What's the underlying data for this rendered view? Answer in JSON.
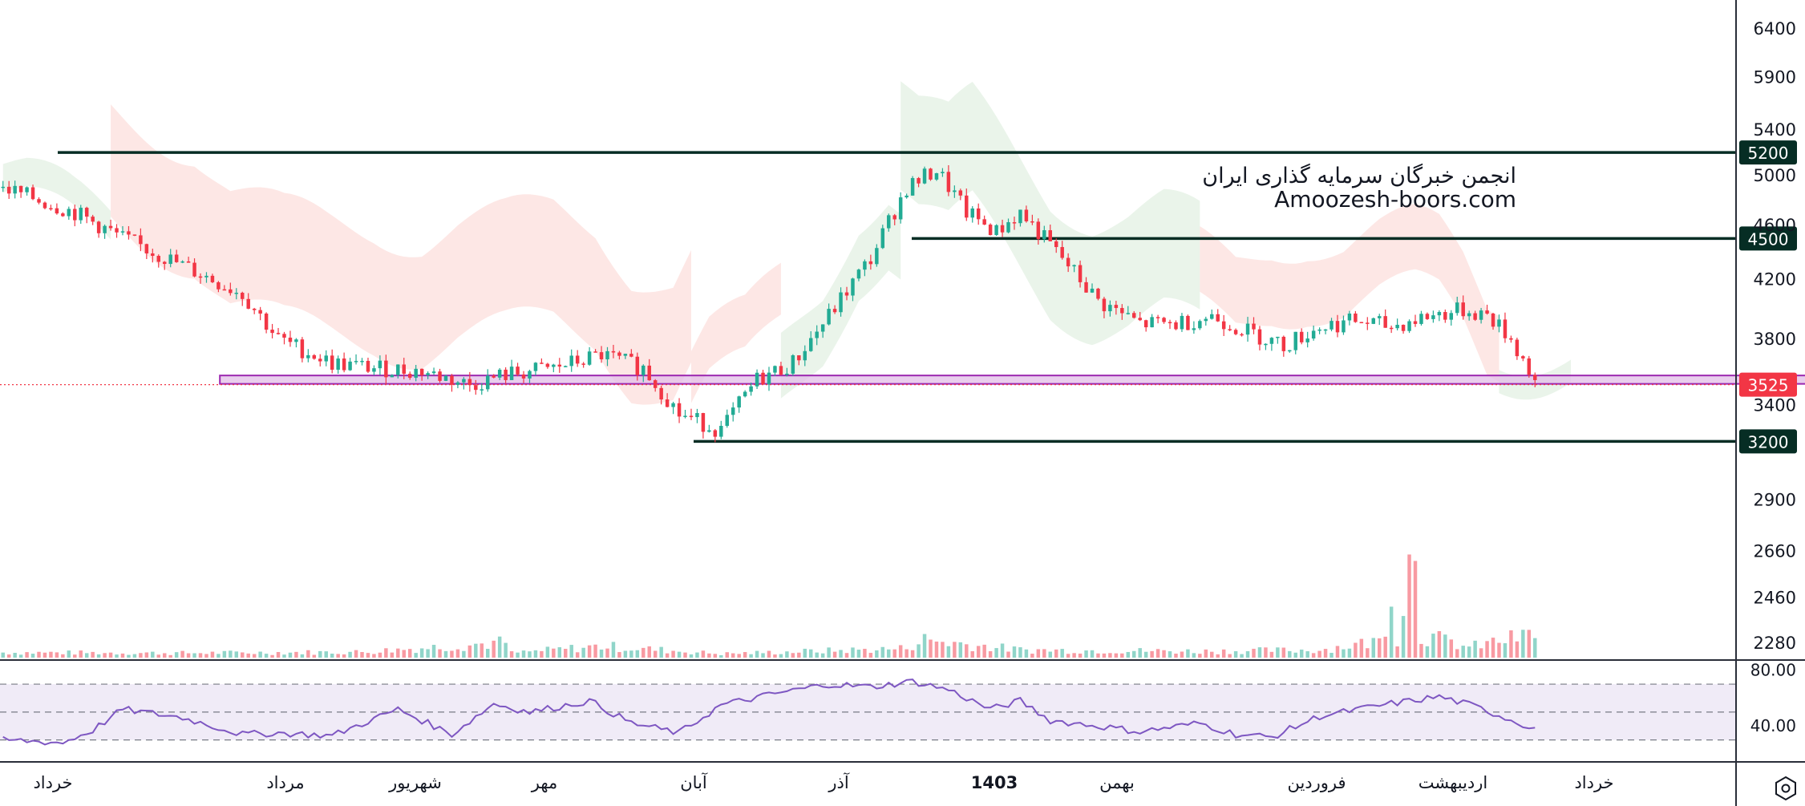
{
  "chart_data": {
    "type": "candlestick",
    "watermark": {
      "title": "انجمن خبرگان سرمایه گذاری ایران",
      "url": "Amoozesh-boors.com"
    },
    "price_axis": {
      "ticks": [
        "6400",
        "5900",
        "5400",
        "5000",
        "4600",
        "4200",
        "3800",
        "3400",
        "2900",
        "2660",
        "2460",
        "2280"
      ],
      "min": 2280,
      "max": 6400,
      "scale": "log"
    },
    "rsi_axis": {
      "ticks": [
        "80.00",
        "40.00"
      ],
      "min": 20,
      "max": 85,
      "upper_band": 70,
      "mid_band": 50,
      "lower_band": 30
    },
    "time_axis": {
      "labels": [
        "خرداد",
        "مرداد",
        "شهریور",
        "مهر",
        "آبان",
        "آذر",
        "1403",
        "بهمن",
        "فروردین",
        "اردیبهشت",
        "خرداد"
      ],
      "bold_label": "1403"
    },
    "horizontal_levels": [
      {
        "value": 5200,
        "label": "5200",
        "from_bar": 151,
        "color": "#062d24"
      },
      {
        "value": 4500,
        "label": "4500",
        "from_bar": 9,
        "color": "#062d24"
      },
      {
        "value": 3200,
        "label": "3200",
        "from_bar": 115,
        "color": "#062d24"
      }
    ],
    "last_price": {
      "value": 3525,
      "label": "3525",
      "color": "#f23645"
    },
    "support_zone": {
      "from": 3525,
      "to": 3575,
      "from_bar": 55,
      "to_bar": 280,
      "color": "#9c27b0"
    },
    "series_colors": {
      "up": "#22ab94",
      "down": "#f23645",
      "cloud_up": "#e6f2e6",
      "cloud_down": "#fde3e1",
      "rsi": "#7e57c2",
      "rsi_band": "#ede7f6"
    },
    "close_path": [
      [
        0,
        4900
      ],
      [
        12,
        4700
      ],
      [
        20,
        4500
      ],
      [
        30,
        4300
      ],
      [
        40,
        4100
      ],
      [
        46,
        3800
      ],
      [
        55,
        3650
      ],
      [
        62,
        3620
      ],
      [
        70,
        3600
      ],
      [
        78,
        3520
      ],
      [
        84,
        3580
      ],
      [
        92,
        3620
      ],
      [
        100,
        3700
      ],
      [
        107,
        3620
      ],
      [
        113,
        3350
      ],
      [
        120,
        3260
      ],
      [
        126,
        3550
      ],
      [
        132,
        3650
      ],
      [
        138,
        3950
      ],
      [
        145,
        4350
      ],
      [
        151,
        4900
      ],
      [
        156,
        5050
      ],
      [
        161,
        4700
      ],
      [
        166,
        4550
      ],
      [
        170,
        4700
      ],
      [
        176,
        4400
      ],
      [
        183,
        4050
      ],
      [
        190,
        3900
      ],
      [
        196,
        3900
      ],
      [
        202,
        3950
      ],
      [
        208,
        3850
      ],
      [
        214,
        3760
      ],
      [
        220,
        3880
      ],
      [
        226,
        3920
      ],
      [
        232,
        3880
      ],
      [
        238,
        3950
      ],
      [
        244,
        3990
      ],
      [
        248,
        3960
      ],
      [
        252,
        3800
      ],
      [
        256,
        3540
      ]
    ],
    "volume_path": [
      [
        0,
        20
      ],
      [
        30,
        18
      ],
      [
        60,
        22
      ],
      [
        84,
        60
      ],
      [
        85,
        18
      ],
      [
        100,
        45
      ],
      [
        120,
        15
      ],
      [
        150,
        35
      ],
      [
        154,
        70
      ],
      [
        170,
        30
      ],
      [
        200,
        25
      ],
      [
        220,
        30
      ],
      [
        230,
        65
      ],
      [
        232,
        250
      ],
      [
        233,
        85
      ],
      [
        236,
        500
      ],
      [
        237,
        90
      ],
      [
        245,
        40
      ],
      [
        250,
        65
      ],
      [
        256,
        90
      ]
    ],
    "rsi_path": [
      [
        0,
        30
      ],
      [
        10,
        28
      ],
      [
        15,
        37
      ],
      [
        20,
        52
      ],
      [
        30,
        46
      ],
      [
        40,
        34
      ],
      [
        46,
        35
      ],
      [
        55,
        33
      ],
      [
        66,
        52
      ],
      [
        75,
        34
      ],
      [
        82,
        56
      ],
      [
        88,
        50
      ],
      [
        98,
        58
      ],
      [
        105,
        42
      ],
      [
        113,
        35
      ],
      [
        120,
        55
      ],
      [
        130,
        64
      ],
      [
        138,
        70
      ],
      [
        145,
        68
      ],
      [
        152,
        72
      ],
      [
        158,
        66
      ],
      [
        165,
        52
      ],
      [
        170,
        58
      ],
      [
        175,
        44
      ],
      [
        183,
        40
      ],
      [
        190,
        36
      ],
      [
        200,
        42
      ],
      [
        206,
        34
      ],
      [
        212,
        32
      ],
      [
        220,
        47
      ],
      [
        232,
        56
      ],
      [
        240,
        61
      ],
      [
        246,
        54
      ],
      [
        256,
        38
      ]
    ]
  },
  "icons": {
    "settings": "hexagon-settings-icon"
  }
}
